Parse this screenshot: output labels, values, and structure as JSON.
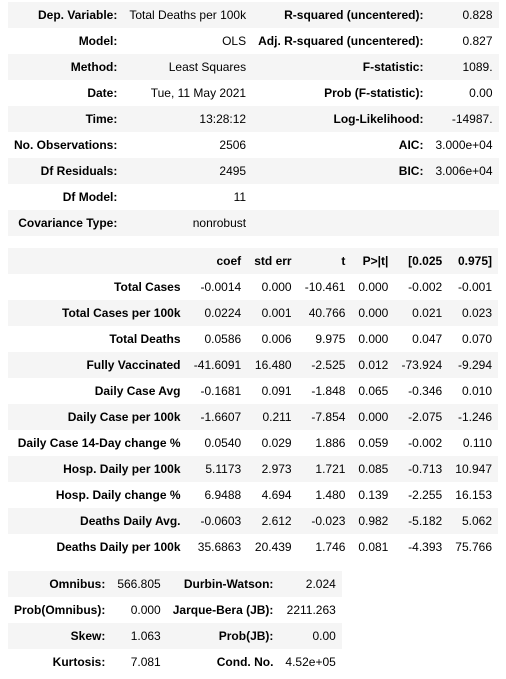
{
  "summary": {
    "rows": [
      [
        "Dep. Variable:",
        "Total Deaths per 100k",
        "R-squared (uncentered):",
        "0.828"
      ],
      [
        "Model:",
        "OLS",
        "Adj. R-squared (uncentered):",
        "0.827"
      ],
      [
        "Method:",
        "Least Squares",
        "F-statistic:",
        "1089."
      ],
      [
        "Date:",
        "Tue, 11 May 2021",
        "Prob (F-statistic):",
        "0.00"
      ],
      [
        "Time:",
        "13:28:12",
        "Log-Likelihood:",
        "-14987."
      ],
      [
        "No. Observations:",
        "2506",
        "AIC:",
        "3.000e+04"
      ],
      [
        "Df Residuals:",
        "2495",
        "BIC:",
        "3.006e+04"
      ],
      [
        "Df Model:",
        "11",
        "",
        ""
      ],
      [
        "Covariance Type:",
        "nonrobust",
        "",
        ""
      ]
    ]
  },
  "coefficients": {
    "headers": [
      "",
      "coef",
      "std err",
      "t",
      "P>|t|",
      "[0.025",
      "0.975]"
    ],
    "rows": [
      [
        "Total Cases",
        "-0.0014",
        "0.000",
        "-10.461",
        "0.000",
        "-0.002",
        "-0.001"
      ],
      [
        "Total Cases per 100k",
        "0.0224",
        "0.001",
        "40.766",
        "0.000",
        "0.021",
        "0.023"
      ],
      [
        "Total Deaths",
        "0.0586",
        "0.006",
        "9.975",
        "0.000",
        "0.047",
        "0.070"
      ],
      [
        "Fully Vaccinated",
        "-41.6091",
        "16.480",
        "-2.525",
        "0.012",
        "-73.924",
        "-9.294"
      ],
      [
        "Daily Case Avg",
        "-0.1681",
        "0.091",
        "-1.848",
        "0.065",
        "-0.346",
        "0.010"
      ],
      [
        "Daily Case per 100k",
        "-1.6607",
        "0.211",
        "-7.854",
        "0.000",
        "-2.075",
        "-1.246"
      ],
      [
        "Daily Case 14-Day change %",
        "0.0540",
        "0.029",
        "1.886",
        "0.059",
        "-0.002",
        "0.110"
      ],
      [
        "Hosp. Daily per 100k",
        "5.1173",
        "2.973",
        "1.721",
        "0.085",
        "-0.713",
        "10.947"
      ],
      [
        "Hosp. Daily change %",
        "6.9488",
        "4.694",
        "1.480",
        "0.139",
        "-2.255",
        "16.153"
      ],
      [
        "Deaths Daily Avg.",
        "-0.0603",
        "2.612",
        "-0.023",
        "0.982",
        "-5.182",
        "5.062"
      ],
      [
        "Deaths Daily per 100k",
        "35.6863",
        "20.439",
        "1.746",
        "0.081",
        "-4.393",
        "75.766"
      ]
    ]
  },
  "diagnostics": {
    "rows": [
      [
        "Omnibus:",
        "566.805",
        "Durbin-Watson:",
        "2.024"
      ],
      [
        "Prob(Omnibus):",
        "0.000",
        "Jarque-Bera (JB):",
        "2211.263"
      ],
      [
        "Skew:",
        "1.063",
        "Prob(JB):",
        "0.00"
      ],
      [
        "Kurtosis:",
        "7.081",
        "Cond. No.",
        "4.52e+05"
      ]
    ]
  }
}
